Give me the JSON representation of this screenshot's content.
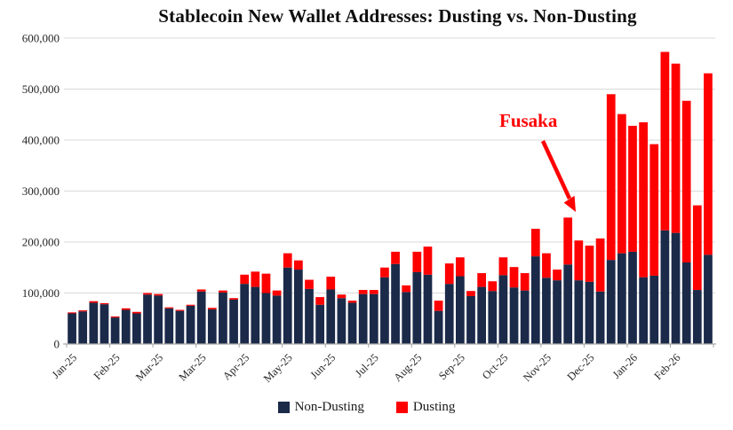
{
  "title": "Stablecoin New Wallet Addresses: Dusting vs. Non-Dusting",
  "annotation": {
    "label": "Fusaka",
    "color": "#ff0000"
  },
  "legend": [
    {
      "label": "Non-Dusting",
      "color": "#1b2a49"
    },
    {
      "label": "Dusting",
      "color": "#ff0000"
    }
  ],
  "chart_data": {
    "type": "bar",
    "stacked": true,
    "title": "Stablecoin New Wallet Addresses: Dusting vs. Non-Dusting",
    "xlabel": "",
    "ylabel": "",
    "ylim": [
      0,
      600000
    ],
    "y_tick_step": 100000,
    "grid": true,
    "legend_position": "bottom",
    "x_tick_labels": [
      "Jan-25",
      "Feb-25",
      "Mar-25",
      "Mar-25",
      "Apr-25",
      "May-25",
      "Jun-25",
      "Jul-25",
      "Aug-25",
      "Sep-25",
      "Oct-25",
      "Nov-25",
      "Dec-25",
      "Jan-26",
      "Feb-26"
    ],
    "bars_per_tick": 4,
    "colors": {
      "grid": "#d9d9d9",
      "axis": "#a6a6a6",
      "tick_text": "#262626"
    },
    "series": [
      {
        "name": "Non-Dusting",
        "color": "#1b2a49",
        "values": [
          60000,
          64000,
          81000,
          78000,
          52000,
          67000,
          60000,
          97000,
          95000,
          70000,
          65000,
          75000,
          103000,
          68000,
          101000,
          87000,
          118000,
          112000,
          100000,
          95000,
          150000,
          146000,
          108000,
          77000,
          107000,
          90000,
          81000,
          98000,
          98000,
          131000,
          157000,
          102000,
          141000,
          136000,
          65000,
          118000,
          133000,
          94000,
          112000,
          104000,
          135000,
          111000,
          105000,
          172000,
          130000,
          125000,
          156000,
          125000,
          122000,
          103000,
          165000,
          178000,
          181000,
          131000,
          134000,
          223000,
          218000,
          160000,
          106000,
          175000
        ]
      },
      {
        "name": "Dusting",
        "color": "#ff0000",
        "values": [
          2000,
          2000,
          3000,
          2000,
          2000,
          3000,
          3000,
          3000,
          3000,
          2000,
          2000,
          2000,
          4000,
          3000,
          4000,
          3000,
          18000,
          30000,
          38000,
          10000,
          28000,
          18000,
          18000,
          15000,
          25000,
          7000,
          4000,
          8000,
          8000,
          19000,
          24000,
          13000,
          40000,
          55000,
          20000,
          40000,
          37000,
          10000,
          27000,
          19000,
          35000,
          40000,
          34000,
          54000,
          48000,
          21000,
          92000,
          78000,
          71000,
          104000,
          325000,
          273000,
          247000,
          304000,
          258000,
          350000,
          332000,
          317000,
          166000,
          356000
        ]
      }
    ]
  }
}
